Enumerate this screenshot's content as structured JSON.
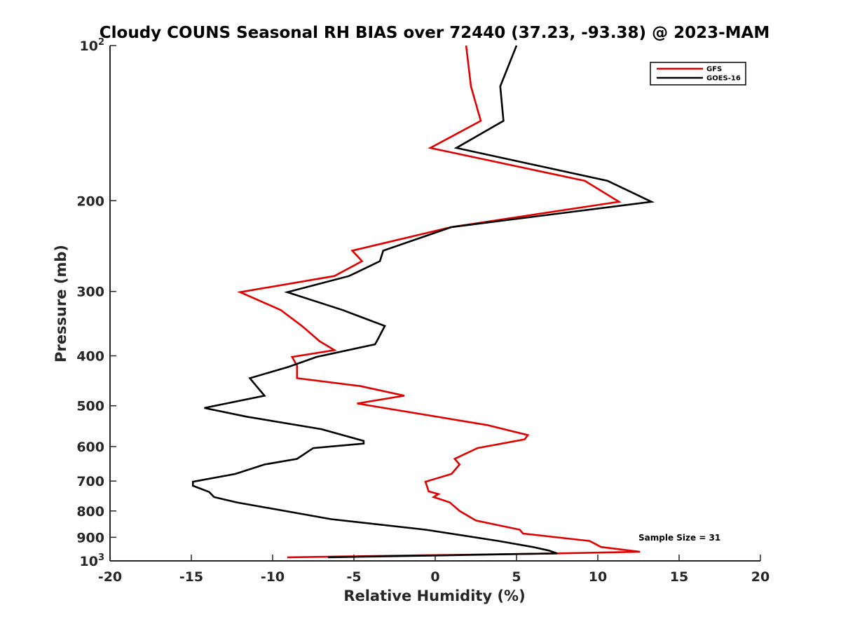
{
  "chart_data": {
    "type": "line",
    "title": "Cloudy COUNS Seasonal RH BIAS over 72440 (37.23, -93.38) @ 2023-MAM",
    "xlabel": "Relative Humidity (%)",
    "ylabel": "Pressure (mb)",
    "xlim": [
      -20,
      20
    ],
    "ylim": [
      100,
      1000
    ],
    "yscale": "log",
    "y_reversed": true,
    "x_ticks": [
      -20,
      -15,
      -10,
      -5,
      0,
      5,
      10,
      15,
      20
    ],
    "x_tick_labels": [
      "-20",
      "-15",
      "-10",
      "-5",
      "0",
      "5",
      "10",
      "15",
      "20"
    ],
    "y_ticks": [
      {
        "value": 100,
        "base": "10",
        "exp": "2"
      },
      {
        "value": 200,
        "label": "200"
      },
      {
        "value": 300,
        "label": "300"
      },
      {
        "value": 400,
        "label": "400"
      },
      {
        "value": 500,
        "label": "500"
      },
      {
        "value": 600,
        "label": "600"
      },
      {
        "value": 700,
        "label": "700"
      },
      {
        "value": 800,
        "label": "800"
      },
      {
        "value": 900,
        "label": "900"
      },
      {
        "value": 1000,
        "base": "10",
        "exp": "3"
      }
    ],
    "legend_position": "top-right",
    "annotation": "Sample Size = 31",
    "series": [
      {
        "name": "GFS",
        "color": "#e00000",
        "points": [
          [
            1.9,
            100
          ],
          [
            2.2,
            120
          ],
          [
            2.8,
            140
          ],
          [
            -0.3,
            158
          ],
          [
            9.2,
            183
          ],
          [
            11.3,
            201
          ],
          [
            1.0,
            225
          ],
          [
            -5.1,
            250
          ],
          [
            -4.5,
            262
          ],
          [
            -6.2,
            280
          ],
          [
            -12.0,
            301
          ],
          [
            -9.5,
            326
          ],
          [
            -8.2,
            350
          ],
          [
            -7.1,
            375
          ],
          [
            -6.2,
            390
          ],
          [
            -8.8,
            402
          ],
          [
            -8.5,
            418
          ],
          [
            -8.5,
            442
          ],
          [
            -4.6,
            458
          ],
          [
            -1.9,
            478
          ],
          [
            -4.8,
            495
          ],
          [
            3.2,
            545
          ],
          [
            5.7,
            570
          ],
          [
            5.5,
            581
          ],
          [
            2.6,
            604
          ],
          [
            1.2,
            634
          ],
          [
            1.5,
            650
          ],
          [
            1.0,
            678
          ],
          [
            -0.6,
            702
          ],
          [
            -0.4,
            733
          ],
          [
            0.2,
            742
          ],
          [
            -0.1,
            752
          ],
          [
            0.9,
            770
          ],
          [
            1.5,
            800
          ],
          [
            2.5,
            835
          ],
          [
            5.2,
            870
          ],
          [
            5.4,
            885
          ],
          [
            9.5,
            915
          ],
          [
            10.2,
            940
          ],
          [
            12.6,
            960
          ],
          [
            7.5,
            967
          ],
          [
            -9.1,
            984
          ]
        ]
      },
      {
        "name": "GOES-16",
        "color": "#000000",
        "points": [
          [
            5.0,
            100
          ],
          [
            4.0,
            120
          ],
          [
            4.2,
            140
          ],
          [
            1.3,
            158
          ],
          [
            10.6,
            183
          ],
          [
            13.3,
            201
          ],
          [
            1.0,
            225
          ],
          [
            -3.2,
            250
          ],
          [
            -3.4,
            262
          ],
          [
            -5.3,
            280
          ],
          [
            -9.1,
            301
          ],
          [
            -5.7,
            326
          ],
          [
            -3.1,
            350
          ],
          [
            -3.5,
            370
          ],
          [
            -3.7,
            380
          ],
          [
            -7.3,
            402
          ],
          [
            -9.0,
            420
          ],
          [
            -11.4,
            442
          ],
          [
            -10.5,
            478
          ],
          [
            -14.2,
            505
          ],
          [
            -11.6,
            525
          ],
          [
            -7.0,
            555
          ],
          [
            -4.4,
            585
          ],
          [
            -4.4,
            592
          ],
          [
            -7.5,
            604
          ],
          [
            -8.5,
            634
          ],
          [
            -10.5,
            650
          ],
          [
            -12.3,
            678
          ],
          [
            -14.9,
            702
          ],
          [
            -14.9,
            715
          ],
          [
            -13.9,
            735
          ],
          [
            -13.6,
            752
          ],
          [
            -12.2,
            770
          ],
          [
            -6.4,
            830
          ],
          [
            -0.6,
            870
          ],
          [
            3.9,
            915
          ],
          [
            6.0,
            940
          ],
          [
            7.0,
            955
          ],
          [
            7.5,
            967
          ],
          [
            -6.6,
            984
          ]
        ]
      }
    ]
  }
}
